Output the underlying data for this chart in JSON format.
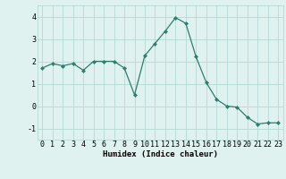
{
  "x": [
    0,
    1,
    2,
    3,
    4,
    5,
    6,
    7,
    8,
    9,
    10,
    11,
    12,
    13,
    14,
    15,
    16,
    17,
    18,
    19,
    20,
    21,
    22,
    23
  ],
  "y": [
    1.7,
    1.9,
    1.8,
    1.9,
    1.6,
    2.0,
    2.0,
    2.0,
    1.7,
    0.5,
    2.25,
    2.8,
    3.35,
    3.95,
    3.7,
    2.2,
    1.05,
    0.3,
    0.0,
    -0.05,
    -0.5,
    -0.8,
    -0.75,
    -0.75
  ],
  "xlabel": "Humidex (Indice chaleur)",
  "ylabel": "",
  "ylim": [
    -1.5,
    4.5
  ],
  "xlim": [
    -0.5,
    23.5
  ],
  "yticks": [
    -1,
    0,
    1,
    2,
    3,
    4
  ],
  "xticks": [
    0,
    1,
    2,
    3,
    4,
    5,
    6,
    7,
    8,
    9,
    10,
    11,
    12,
    13,
    14,
    15,
    16,
    17,
    18,
    19,
    20,
    21,
    22,
    23
  ],
  "line_color": "#2e7d6e",
  "marker": "D",
  "marker_size": 2.2,
  "bg_color": "#dff2f0",
  "grid_color": "#b8ddd8",
  "label_fontsize": 6.5,
  "tick_fontsize": 6.0
}
